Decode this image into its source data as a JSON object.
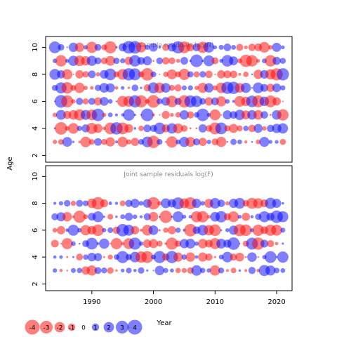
{
  "chart_data": {
    "type": "scatter",
    "subtype": "bubble",
    "ylabel": "Age",
    "xlabel": "Year",
    "x_ticks": [
      1990,
      2000,
      2010,
      2020
    ],
    "y_ticks": [
      2,
      4,
      6,
      8,
      10
    ],
    "xlim": [
      1982.5,
      2022.5
    ],
    "ylim": [
      1.5,
      10.8
    ],
    "colors": {
      "positive": "#0000ff",
      "negative": "#ff0000",
      "opacity": 0.5
    },
    "panels": [
      {
        "title": "Joint sample residuals log(N)",
        "ages": [
          3,
          4,
          5,
          6,
          7,
          8,
          9,
          10
        ],
        "years": [
          1984,
          2021
        ],
        "seed": 11
      },
      {
        "title": "Joint sample residuals log(F)",
        "ages": [
          3,
          4,
          5,
          6,
          7,
          8
        ],
        "years": [
          1984,
          2021
        ],
        "seed": 37
      }
    ],
    "legend": {
      "values": [
        -4,
        -3,
        -2,
        -1,
        0,
        1,
        2,
        3,
        4
      ],
      "labels": [
        "-4",
        "-3",
        "-2",
        "-1",
        "0",
        "1",
        "2",
        "3",
        "4"
      ]
    }
  }
}
